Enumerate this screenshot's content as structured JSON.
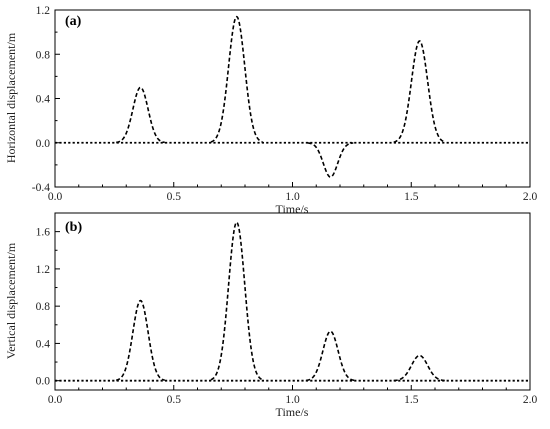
{
  "chart_data": [
    {
      "type": "line",
      "panel_label": "(a)",
      "xlabel": "Time/s",
      "ylabel": "Horizontal displacement/m",
      "xlim": [
        0,
        2.0
      ],
      "ylim": [
        -0.4,
        1.2
      ],
      "xticks": [
        "0.0",
        "0.5",
        "1.0",
        "1.5",
        "2.0"
      ],
      "yticks": [
        "-0.4",
        "0.0",
        "0.4",
        "0.8",
        "1.2"
      ],
      "grid": false,
      "baseline": 0,
      "pulses": [
        {
          "center": 0.36,
          "amplitude": 0.5,
          "width": 0.032
        },
        {
          "center": 0.765,
          "amplitude": 1.14,
          "width": 0.034
        },
        {
          "center": 1.16,
          "amplitude": -0.31,
          "width": 0.03
        },
        {
          "center": 1.535,
          "amplitude": 0.92,
          "width": 0.034
        }
      ]
    },
    {
      "type": "line",
      "panel_label": "(b)",
      "xlabel": "Time/s",
      "ylabel": "Vertical displacement/m",
      "xlim": [
        0,
        2.0
      ],
      "ylim": [
        -0.1,
        1.8
      ],
      "xticks": [
        "0.0",
        "0.5",
        "1.0",
        "1.5",
        "2.0"
      ],
      "yticks": [
        "0.0",
        "0.4",
        "0.8",
        "1.2",
        "1.6"
      ],
      "grid": false,
      "baseline": 0,
      "pulses": [
        {
          "center": 0.36,
          "amplitude": 0.86,
          "width": 0.032
        },
        {
          "center": 0.765,
          "amplitude": 1.7,
          "width": 0.034
        },
        {
          "center": 1.16,
          "amplitude": 0.53,
          "width": 0.032
        },
        {
          "center": 1.535,
          "amplitude": 0.27,
          "width": 0.034
        }
      ]
    }
  ]
}
